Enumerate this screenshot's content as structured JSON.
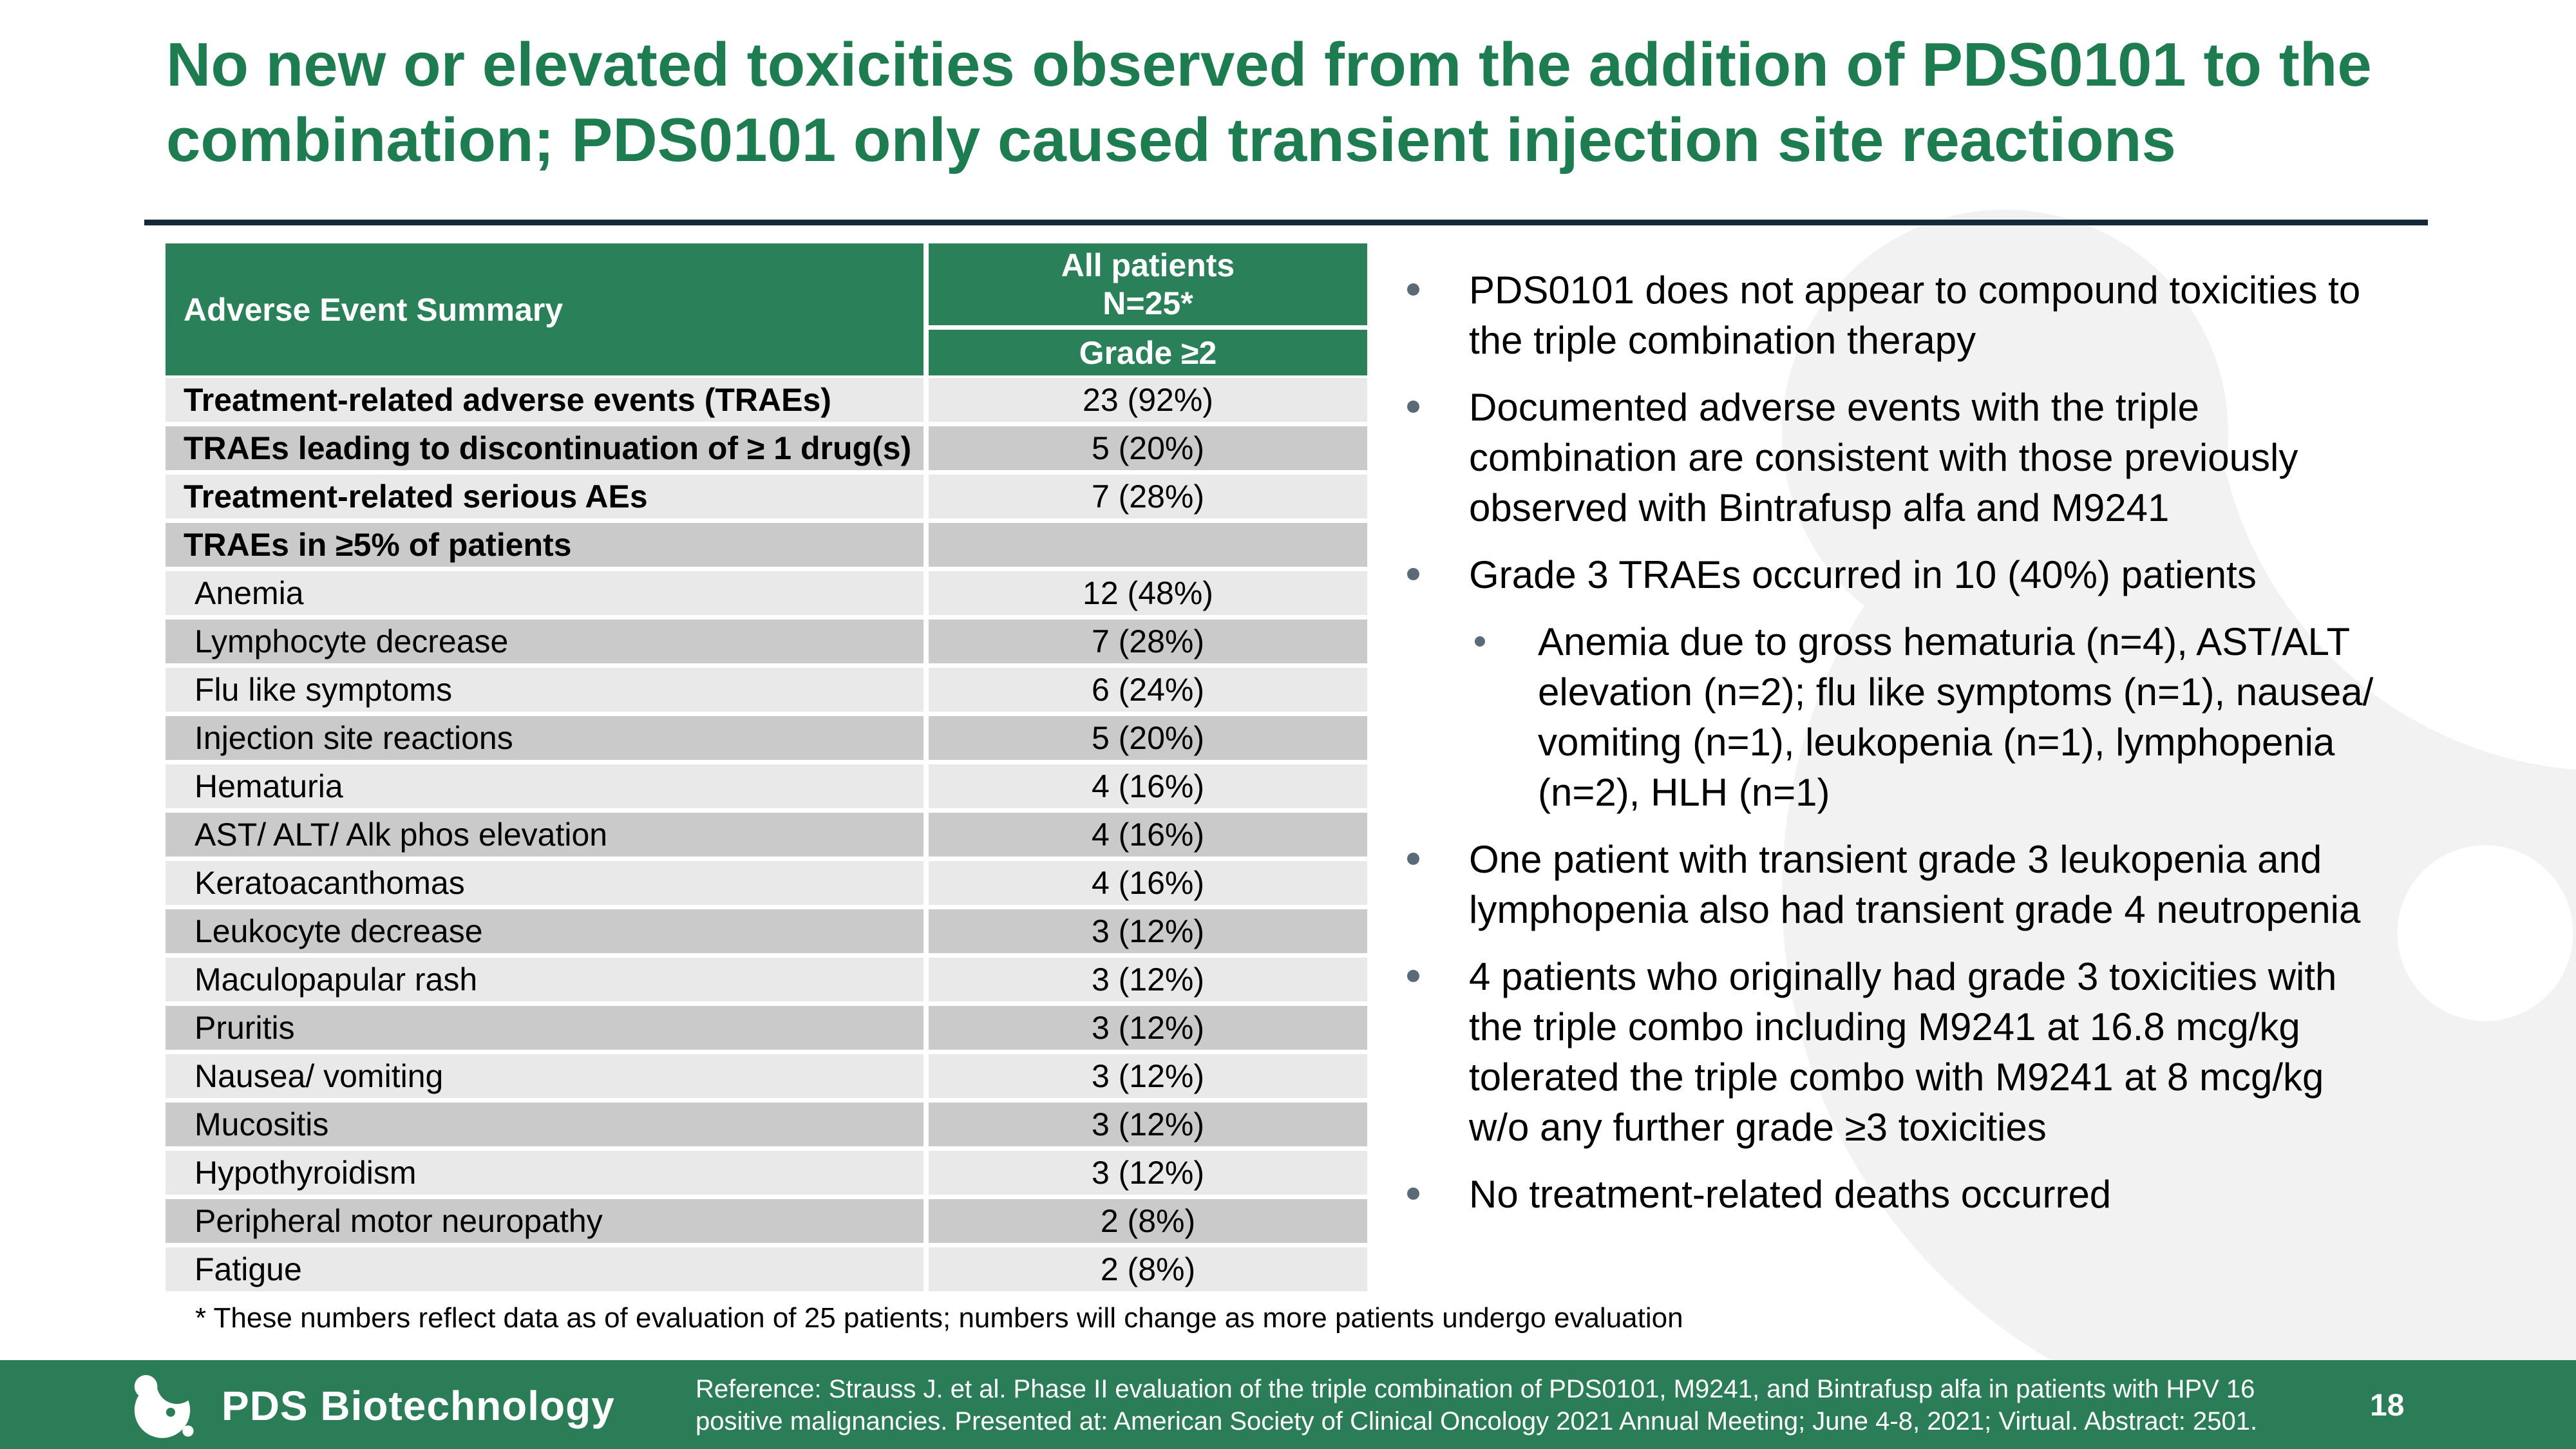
{
  "slide": {
    "title": "No new or elevated toxicities observed from the addition of PDS0101 to the combination; PDS0101 only caused transient injection site reactions"
  },
  "table": {
    "header": {
      "col1": "Adverse Event Summary",
      "col2_line1": "All patients",
      "col2_line2": "N=25*",
      "col2_sub": "Grade ≥2"
    },
    "rows": [
      {
        "label": "Treatment-related adverse events (TRAEs)",
        "value": "23 (92%)",
        "bold": true,
        "indent": false
      },
      {
        "label": "TRAEs leading to discontinuation of ≥ 1 drug(s)",
        "value": "5 (20%)",
        "bold": true,
        "indent": false
      },
      {
        "label": "Treatment-related serious AEs",
        "value": "7 (28%)",
        "bold": true,
        "indent": false
      },
      {
        "label": "TRAEs in ≥5% of patients",
        "value": "",
        "bold": true,
        "indent": false
      },
      {
        "label": "Anemia",
        "value": "12 (48%)",
        "bold": false,
        "indent": true
      },
      {
        "label": "Lymphocyte decrease",
        "value": "7 (28%)",
        "bold": false,
        "indent": true
      },
      {
        "label": "Flu like symptoms",
        "value": "6 (24%)",
        "bold": false,
        "indent": true
      },
      {
        "label": "Injection site reactions",
        "value": "5 (20%)",
        "bold": false,
        "indent": true
      },
      {
        "label": "Hematuria",
        "value": "4 (16%)",
        "bold": false,
        "indent": true
      },
      {
        "label": "AST/ ALT/ Alk phos elevation",
        "value": "4 (16%)",
        "bold": false,
        "indent": true
      },
      {
        "label": "Keratoacanthomas",
        "value": "4 (16%)",
        "bold": false,
        "indent": true
      },
      {
        "label": "Leukocyte decrease",
        "value": "3 (12%)",
        "bold": false,
        "indent": true
      },
      {
        "label": "Maculopapular rash",
        "value": "3 (12%)",
        "bold": false,
        "indent": true
      },
      {
        "label": "Pruritis",
        "value": "3 (12%)",
        "bold": false,
        "indent": true
      },
      {
        "label": "Nausea/ vomiting",
        "value": "3 (12%)",
        "bold": false,
        "indent": true
      },
      {
        "label": "Mucositis",
        "value": "3 (12%)",
        "bold": false,
        "indent": true
      },
      {
        "label": "Hypothyroidism",
        "value": "3 (12%)",
        "bold": false,
        "indent": true
      },
      {
        "label": "Peripheral motor neuropathy",
        "value": "2 (8%)",
        "bold": false,
        "indent": true
      },
      {
        "label": "Fatigue",
        "value": "2 (8%)",
        "bold": false,
        "indent": true
      }
    ],
    "footnote": "* These numbers reflect data as of evaluation of 25 patients; numbers will change as more patients undergo evaluation"
  },
  "bullets": [
    {
      "level": 1,
      "text": "PDS0101 does not appear to compound toxicities to the triple combination therapy"
    },
    {
      "level": 1,
      "text": "Documented adverse events with the triple combination are consistent with those previously observed with Bintrafusp alfa and M9241"
    },
    {
      "level": 1,
      "text": "Grade 3 TRAEs occurred in 10 (40%) patients"
    },
    {
      "level": 2,
      "text": "Anemia due to gross hematuria (n=4), AST/ALT elevation (n=2); flu like symptoms (n=1), nausea/ vomiting (n=1), leukopenia (n=1), lymphopenia (n=2), HLH (n=1)"
    },
    {
      "level": 1,
      "text": "One patient with transient grade 3 leukopenia and lymphopenia also had transient grade 4 neutropenia"
    },
    {
      "level": 1,
      "text": "4 patients who originally had grade 3 toxicities with the triple combo including M9241 at 16.8 mcg/kg tolerated the triple combo with M9241 at 8 mcg/kg w/o any  further grade ≥3 toxicities"
    },
    {
      "level": 1,
      "text": "No treatment-related deaths occurred"
    }
  ],
  "footer": {
    "brand": "PDS Biotechnology",
    "reference": "Reference: Strauss J. et al. Phase II evaluation of the triple combination of PDS0101, M9241, and Bintrafusp alfa in patients with HPV 16 positive malignancies. Presented at: American Society of Clinical Oncology 2021 Annual Meeting; June 4-8, 2021; Virtual. Abstract: 2501.",
    "page": "18"
  },
  "colors": {
    "title_green": "#1e7d50",
    "table_header_green": "#2a8159",
    "footer_green": "#2b7d57",
    "navy_rule": "#16293a",
    "row_light": "#e9e9e9",
    "row_dark": "#cacaca",
    "bullet_dot": "#5a6a76",
    "watermark": "#f2f2f2"
  }
}
